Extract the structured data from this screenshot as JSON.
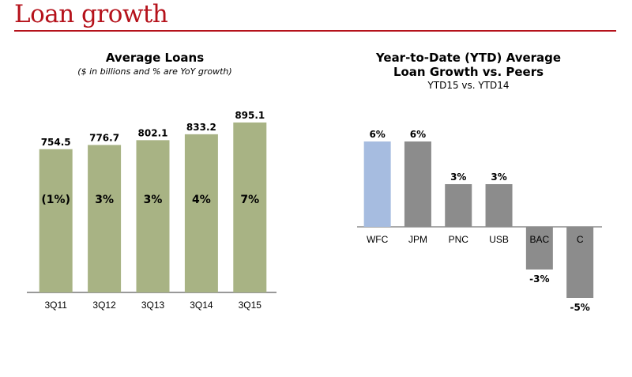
{
  "header": {
    "title": "Loan growth",
    "rule_color": "#b5121b"
  },
  "chart_data": [
    {
      "type": "bar",
      "title": "Average Loans",
      "subtitle": "($ in billions and % are YoY growth)",
      "categories": [
        "3Q11",
        "3Q12",
        "3Q13",
        "3Q14",
        "3Q15"
      ],
      "values": [
        754.5,
        776.7,
        802.1,
        833.2,
        895.1
      ],
      "value_labels": [
        "754.5",
        "776.7",
        "802.1",
        "833.2",
        "895.1"
      ],
      "growth_labels": [
        "(1%)",
        "3%",
        "3%",
        "4%",
        "7%"
      ],
      "bar_color": "#a8b384",
      "grid": false,
      "legend": false
    },
    {
      "type": "bar",
      "title_lines": [
        "Year-to-Date (YTD) Average",
        "Loan Growth vs. Peers"
      ],
      "subtitle": "YTD15 vs. YTD14",
      "categories": [
        "WFC",
        "JPM",
        "PNC",
        "USB",
        "BAC",
        "C"
      ],
      "values": [
        6,
        6,
        3,
        3,
        -3,
        -5
      ],
      "value_labels": [
        "6%",
        "6%",
        "3%",
        "3%",
        "-3%",
        "-5%"
      ],
      "unit": "%",
      "highlight_color": "#a6bce0",
      "bar_color": "#8c8c8c",
      "highlight_index": 0,
      "grid": false,
      "legend": false
    }
  ]
}
